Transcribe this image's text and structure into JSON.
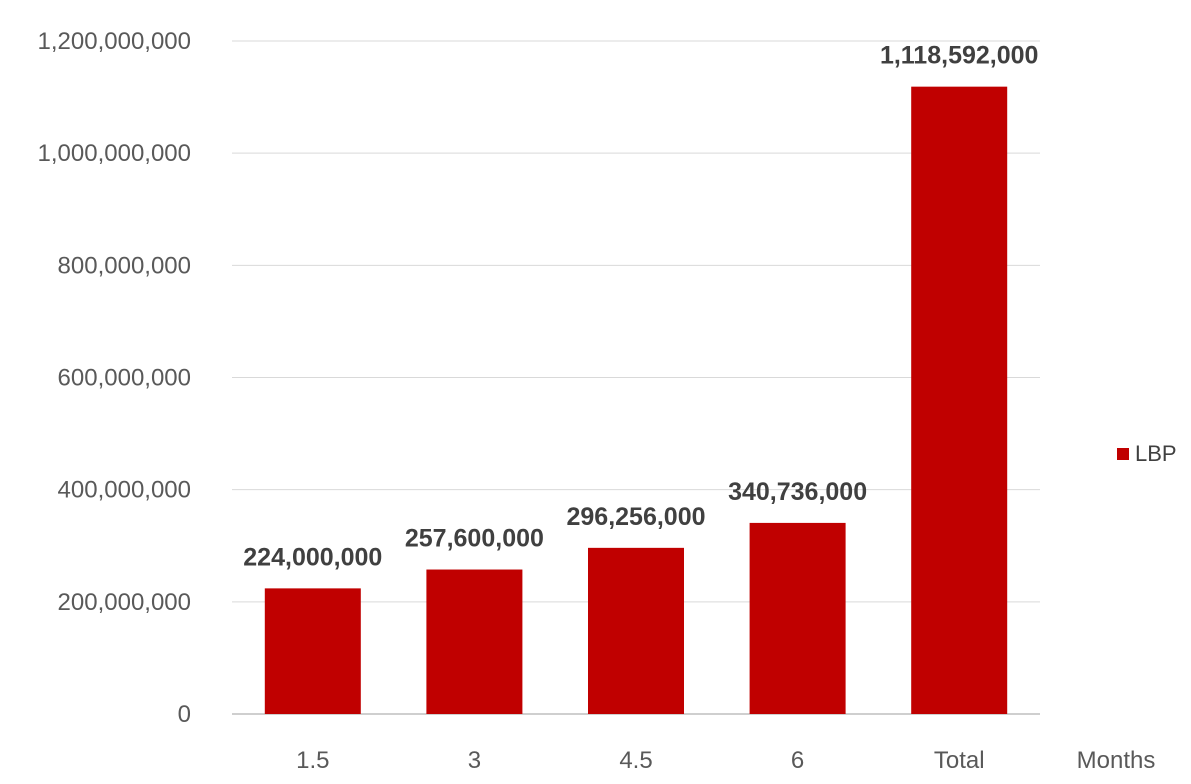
{
  "chart_data": {
    "type": "bar",
    "categories": [
      "1.5",
      "3",
      "4.5",
      "6",
      "Total"
    ],
    "series": [
      {
        "name": "LBP",
        "values": [
          224000000,
          257600000,
          296256000,
          340736000,
          1118592000
        ],
        "color": "#c00000"
      }
    ],
    "data_labels": [
      "224,000,000",
      "257,600,000",
      "296,256,000",
      "340,736,000",
      "1,118,592,000"
    ],
    "y_ticks": [
      0,
      200000000,
      400000000,
      600000000,
      800000000,
      1000000000,
      1200000000
    ],
    "y_tick_labels": [
      "0",
      "200,000,000",
      "400,000,000",
      "600,000,000",
      "800,000,000",
      "1,000,000,000",
      "1,200,000,000"
    ],
    "xlabel": "Months",
    "ylabel": "",
    "ylim": [
      0,
      1200000000
    ],
    "grid": true,
    "legend_position": "right"
  },
  "legend": {
    "label": "LBP",
    "color": "#c00000"
  }
}
